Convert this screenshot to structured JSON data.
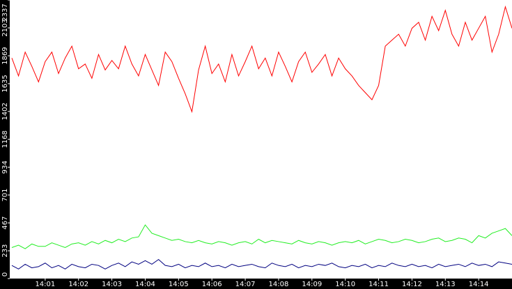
{
  "chart_data": {
    "type": "line",
    "x": [
      0,
      0.2,
      0.4,
      0.6,
      0.8,
      1,
      1.2,
      1.4,
      1.6,
      1.8,
      2,
      2.2,
      2.4,
      2.6,
      2.8,
      3,
      3.2,
      3.4,
      3.6,
      3.8,
      4,
      4.2,
      4.4,
      4.6,
      4.8,
      5,
      5.2,
      5.4,
      5.6,
      5.8,
      6,
      6.2,
      6.4,
      6.6,
      6.8,
      7,
      7.2,
      7.4,
      7.6,
      7.8,
      8,
      8.2,
      8.4,
      8.6,
      8.8,
      9,
      9.2,
      9.4,
      9.6,
      9.8,
      10,
      10.2,
      10.4,
      10.6,
      10.8,
      11,
      11.2,
      11.4,
      11.6,
      11.8,
      12,
      12.2,
      12.4,
      12.6,
      12.8,
      13,
      13.2,
      13.4,
      13.6,
      13.8,
      14,
      14.2,
      14.4,
      14.6,
      14.8,
      15
    ],
    "series": [
      {
        "color": "#ff0000",
        "values": [
          1850,
          1700,
          1900,
          1780,
          1650,
          1820,
          1900,
          1720,
          1850,
          1950,
          1760,
          1800,
          1680,
          1880,
          1750,
          1830,
          1760,
          1950,
          1800,
          1700,
          1880,
          1750,
          1620,
          1900,
          1820,
          1680,
          1550,
          1400,
          1750,
          1950,
          1720,
          1800,
          1650,
          1880,
          1700,
          1820,
          1950,
          1760,
          1850,
          1700,
          1900,
          1780,
          1650,
          1820,
          1900,
          1730,
          1800,
          1880,
          1700,
          1850,
          1760,
          1700,
          1620,
          1560,
          1500,
          1620,
          1950,
          2000,
          2050,
          1950,
          2100,
          2150,
          2000,
          2200,
          2080,
          2250,
          2050,
          1950,
          2150,
          2000,
          2100,
          2200,
          1900,
          2050,
          2280,
          2100
        ]
      },
      {
        "color": "#22ee22",
        "values": [
          260,
          280,
          250,
          290,
          270,
          270,
          300,
          280,
          260,
          290,
          300,
          280,
          310,
          290,
          320,
          300,
          330,
          310,
          340,
          350,
          450,
          380,
          360,
          340,
          320,
          330,
          310,
          300,
          320,
          300,
          290,
          310,
          300,
          280,
          300,
          310,
          290,
          330,
          300,
          320,
          310,
          300,
          290,
          320,
          300,
          290,
          310,
          300,
          280,
          300,
          310,
          300,
          320,
          290,
          310,
          330,
          320,
          300,
          310,
          330,
          320,
          300,
          310,
          330,
          340,
          310,
          320,
          340,
          330,
          300,
          360,
          340,
          380,
          400,
          420,
          360
        ]
      },
      {
        "color": "#000080",
        "values": [
          110,
          80,
          120,
          90,
          100,
          130,
          90,
          110,
          80,
          120,
          100,
          90,
          120,
          110,
          80,
          110,
          130,
          100,
          140,
          120,
          150,
          120,
          160,
          110,
          100,
          120,
          90,
          110,
          100,
          130,
          100,
          110,
          90,
          120,
          100,
          110,
          120,
          100,
          90,
          130,
          110,
          100,
          120,
          90,
          110,
          100,
          120,
          110,
          130,
          100,
          90,
          110,
          100,
          120,
          90,
          110,
          100,
          130,
          110,
          100,
          120,
          100,
          110,
          90,
          120,
          100,
          110,
          120,
          100,
          130,
          110,
          120,
          100,
          140,
          130,
          120
        ]
      }
    ],
    "xlim": [
      0,
      15
    ],
    "xticks": [
      {
        "value": 1,
        "label": "14:01"
      },
      {
        "value": 2,
        "label": "14:02"
      },
      {
        "value": 3,
        "label": "14:03"
      },
      {
        "value": 4,
        "label": "14:04"
      },
      {
        "value": 5,
        "label": "14:05"
      },
      {
        "value": 6,
        "label": "14:06"
      },
      {
        "value": 7,
        "label": "14:07"
      },
      {
        "value": 8,
        "label": "14:08"
      },
      {
        "value": 9,
        "label": "14:09"
      },
      {
        "value": 10,
        "label": "14:10"
      },
      {
        "value": 11,
        "label": "14:11"
      },
      {
        "value": 12,
        "label": "14:12"
      },
      {
        "value": 13,
        "label": "14:13"
      },
      {
        "value": 14,
        "label": "14:14"
      }
    ],
    "ylim": [
      0,
      2337
    ],
    "yticks": [
      0,
      233,
      467,
      701,
      934,
      1168,
      1402,
      1635,
      1869,
      2103,
      2337
    ]
  }
}
